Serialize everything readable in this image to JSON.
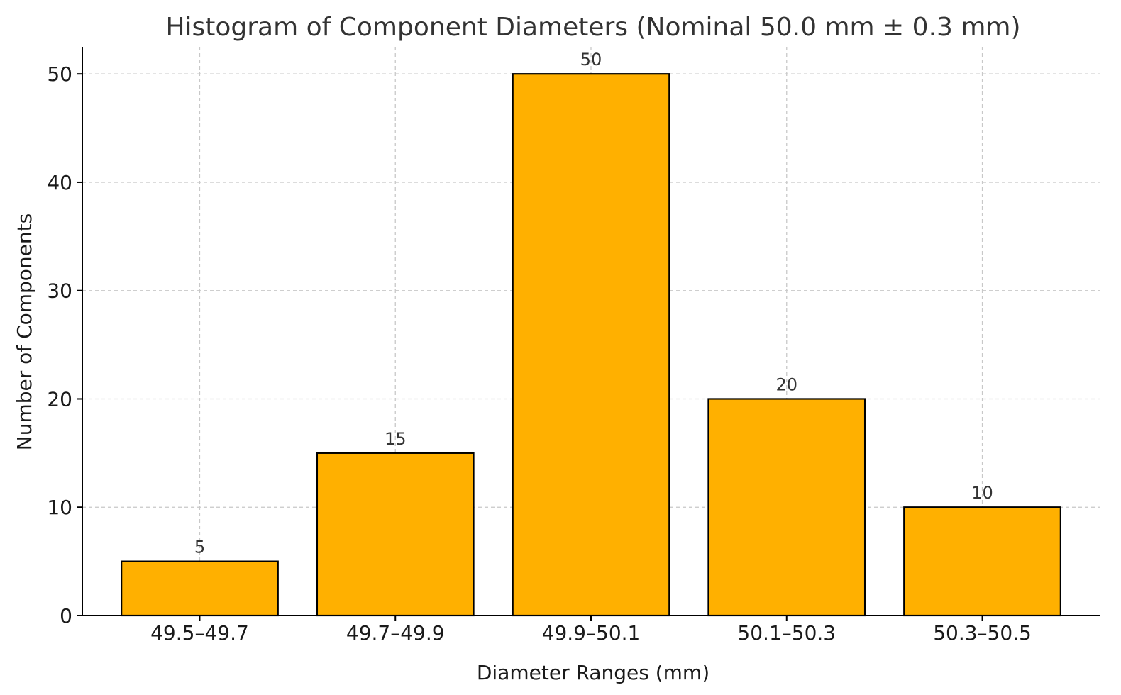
{
  "chart_data": {
    "type": "bar",
    "title": "Histogram of Component Diameters (Nominal 50.0 mm ± 0.3 mm)",
    "xlabel": "Diameter Ranges (mm)",
    "ylabel": "Number of Components",
    "categories": [
      "49.5–49.7",
      "49.7–49.9",
      "49.9–50.1",
      "50.1–50.3",
      "50.3–50.5"
    ],
    "values": [
      5,
      15,
      50,
      20,
      10
    ],
    "data_labels": [
      "5",
      "15",
      "50",
      "20",
      "10"
    ],
    "ylim": [
      0,
      52.5
    ],
    "yticks": [
      0,
      10,
      20,
      30,
      40,
      50
    ],
    "ytick_labels": [
      "0",
      "10",
      "20",
      "30",
      "40",
      "50"
    ],
    "grid": true,
    "bar_color": "#FFB000",
    "edge_color": "#000000"
  }
}
